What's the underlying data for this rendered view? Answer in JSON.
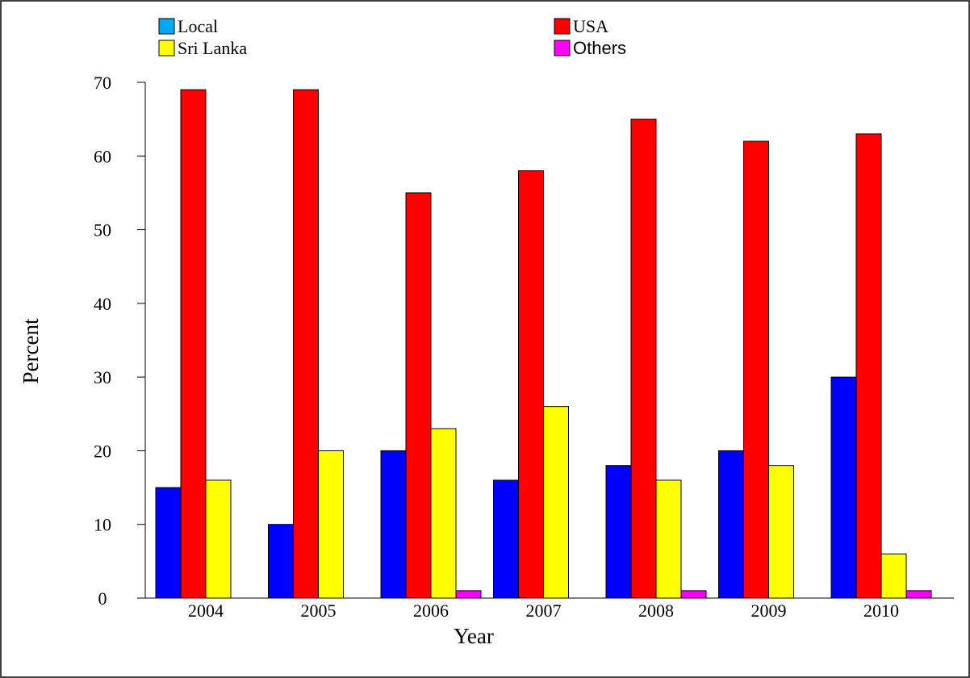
{
  "chart_data": {
    "type": "bar",
    "categories": [
      "2004",
      "2005",
      "2006",
      "2007",
      "2008",
      "2009",
      "2010"
    ],
    "series": [
      {
        "name": "Local",
        "values": [
          15,
          10,
          20,
          16,
          18,
          20,
          30
        ],
        "color": "#0000ff",
        "legend_color": "#00aaee"
      },
      {
        "name": "USA",
        "values": [
          69,
          69,
          55,
          58,
          65,
          62,
          63
        ],
        "color": "#ff0000",
        "legend_color": "#ff0000"
      },
      {
        "name": "Sri Lanka",
        "values": [
          16,
          20,
          23,
          26,
          16,
          18,
          6
        ],
        "color": "#ffff00",
        "legend_color": "#ffff00"
      },
      {
        "name": "Others",
        "values": [
          0,
          0,
          1,
          0,
          1,
          0,
          1
        ],
        "color": "#ff00ff",
        "legend_color": "#ff00ff"
      }
    ],
    "xlabel": "Year",
    "ylabel": "Percent",
    "ylim": [
      0,
      70
    ],
    "yticks": [
      0,
      10,
      20,
      30,
      40,
      50,
      60,
      70
    ],
    "grid": false,
    "legend_position": "top"
  }
}
